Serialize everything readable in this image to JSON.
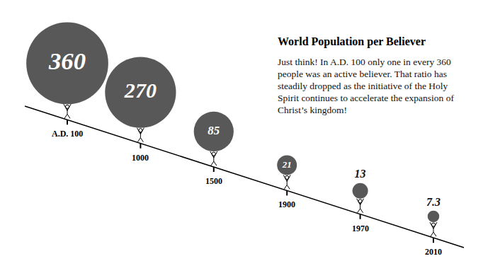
{
  "chart_data": {
    "type": "bubble",
    "title": "World Population per Believer",
    "annotations": [
      "Just think! In A.D. 100 only one in every 360",
      "people was an active believer. That ratio has",
      "steadily dropped as the initiative of the Holy",
      "Spirit continues to accelerate the expansion of",
      "Christ’s kingdom!"
    ],
    "categories": [
      "A.D. 100",
      "1000",
      "1500",
      "1900",
      "1970",
      "2010"
    ],
    "values": [
      360,
      270,
      85,
      21,
      13,
      7.3
    ],
    "data_labels": true,
    "color": "#111111",
    "marker": "circle"
  }
}
